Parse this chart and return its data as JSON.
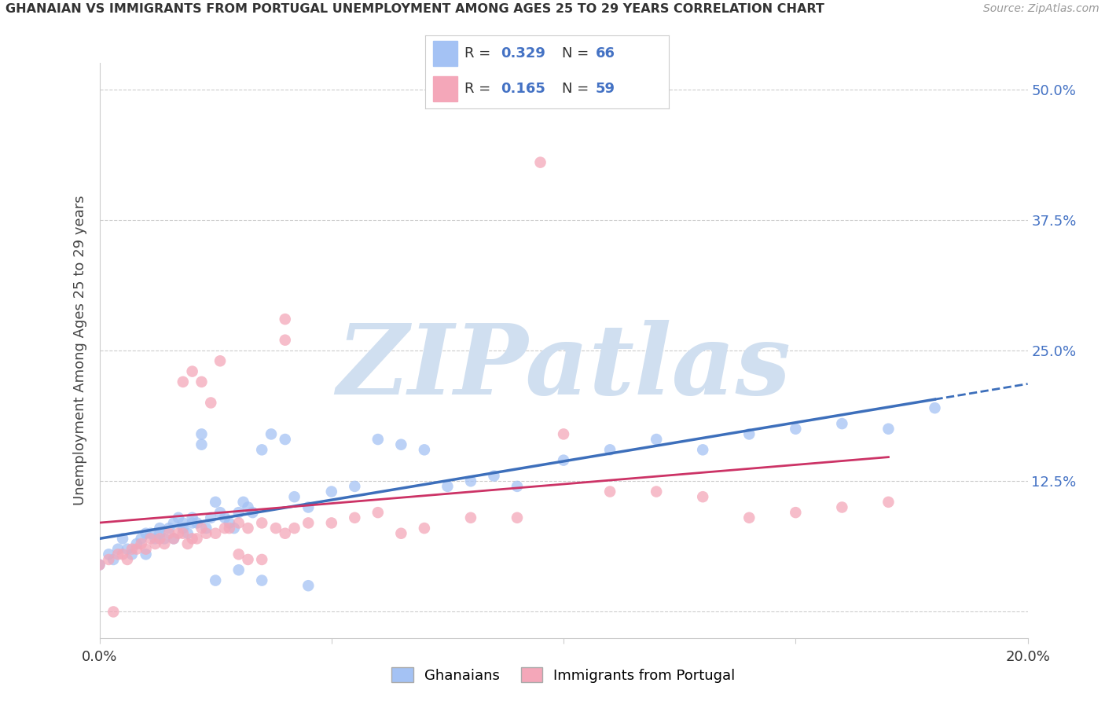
{
  "title": "GHANAIAN VS IMMIGRANTS FROM PORTUGAL UNEMPLOYMENT AMONG AGES 25 TO 29 YEARS CORRELATION CHART",
  "source": "Source: ZipAtlas.com",
  "ylabel": "Unemployment Among Ages 25 to 29 years",
  "xlim": [
    0.0,
    0.2
  ],
  "ylim": [
    -0.025,
    0.525
  ],
  "y_ticks_right": [
    0.0,
    0.125,
    0.25,
    0.375,
    0.5
  ],
  "y_tick_labels_right": [
    "",
    "12.5%",
    "25.0%",
    "37.5%",
    "50.0%"
  ],
  "series1_name": "Ghanaians",
  "series1_R": 0.329,
  "series1_N": 66,
  "series1_color": "#a4c2f4",
  "series1_line_color": "#3d6fbb",
  "series2_name": "Immigrants from Portugal",
  "series2_R": 0.165,
  "series2_N": 59,
  "series2_color": "#f4a7b9",
  "series2_line_color": "#cc3366",
  "watermark_text": "ZIPatlas",
  "watermark_color": "#d0dff0",
  "background_color": "#ffffff",
  "grid_color": "#cccccc",
  "title_color": "#333333",
  "right_axis_color": "#4472c4",
  "legend_R_color": "#4472c4",
  "legend_N_color": "#4472c4"
}
